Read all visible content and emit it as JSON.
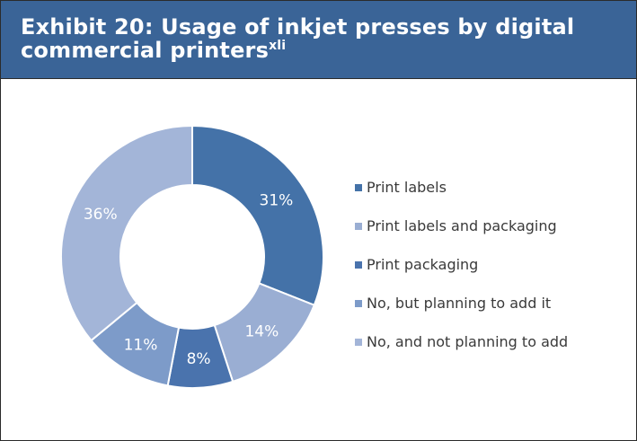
{
  "header": {
    "title": "Exhibit 20: Usage of inkjet presses by digital commercial printers",
    "superscript": "xli"
  },
  "colors": {
    "header_bg": "#3a6497",
    "series": [
      "#4472a8",
      "#9aaed3",
      "#4a73ad",
      "#7d9bc9",
      "#a3b5d8"
    ]
  },
  "chart_data": {
    "type": "pie",
    "donut": true,
    "title": "",
    "legend_position": "right",
    "categories": [
      "Print labels",
      "Print labels and packaging",
      "Print packaging",
      "No, but planning to add it",
      "No, and not planning to add"
    ],
    "values": [
      31,
      14,
      8,
      11,
      36
    ],
    "labels": [
      "31%",
      "14%",
      "8%",
      "11%",
      "36%"
    ]
  }
}
